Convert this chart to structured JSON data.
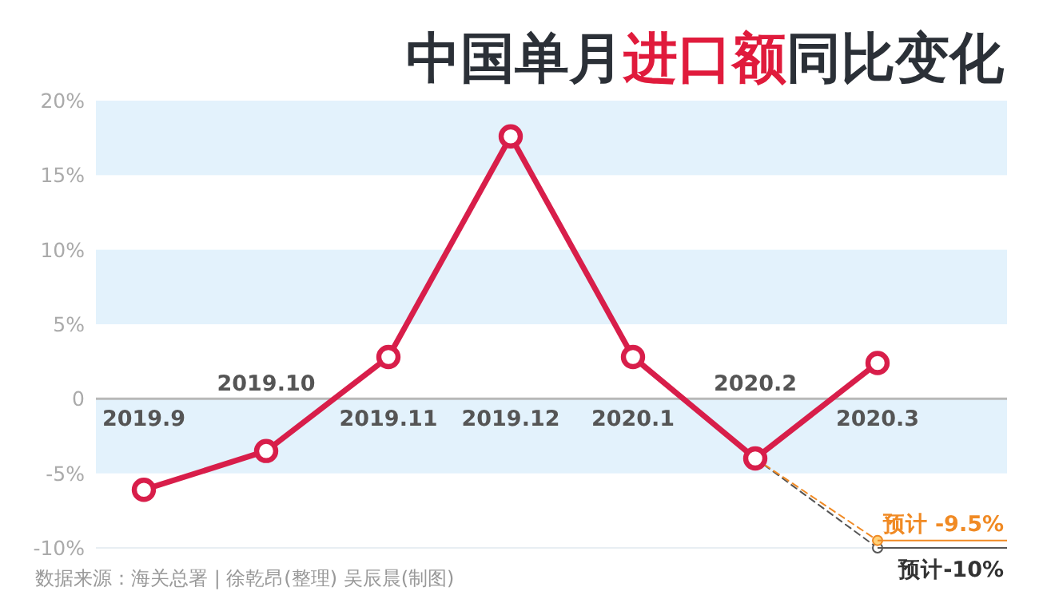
{
  "chart_data": {
    "type": "line",
    "title": "中国单月进口额同比变化",
    "categories": [
      "2019.9",
      "2019.10",
      "2019.11",
      "2019.12",
      "2020.1",
      "2020.2",
      "2020.3"
    ],
    "series": [
      {
        "color": "#d81e4a",
        "values": [
          -6.1,
          -3.5,
          2.8,
          17.6,
          2.8,
          -4.0,
          2.4
        ],
        "marker": "circle",
        "line_style": "solid"
      },
      {
        "color": "#f08a24",
        "values": [
          null,
          null,
          null,
          null,
          null,
          -4.0,
          -9.5
        ],
        "marker": "circle",
        "line_style": "dashed"
      },
      {
        "color": "#555555",
        "values": [
          null,
          null,
          null,
          null,
          null,
          -4.0,
          -10
        ],
        "marker": "circle",
        "line_style": "dashed"
      }
    ],
    "ylim": [
      -10,
      20
    ],
    "yticks": [
      {
        "value": -10,
        "label": "-10%"
      },
      {
        "value": -5,
        "label": "-5%"
      },
      {
        "value": 0,
        "label": "0"
      },
      {
        "value": 5,
        "label": "5%"
      },
      {
        "value": 10,
        "label": "10%"
      },
      {
        "value": 15,
        "label": "15%"
      },
      {
        "value": 20,
        "label": "20%"
      }
    ],
    "bands": [
      {
        "axis": "y",
        "from": 15,
        "to": 20,
        "color": "#e3f2fc"
      },
      {
        "axis": "y",
        "from": 5,
        "to": 10,
        "color": "#e3f2fc"
      },
      {
        "axis": "y",
        "from": -5,
        "to": 0,
        "color": "#e3f2fc"
      }
    ],
    "annotations": [
      {
        "text": "预计 -9.5%",
        "x": "2020.3",
        "y": -9.5
      },
      {
        "text": "预计-10%",
        "x": "2020.3",
        "y": -10
      },
      "数据来源：海关总署 | 徐乾昂(整理) 吴辰晨(制图)"
    ],
    "grid": false
  }
}
